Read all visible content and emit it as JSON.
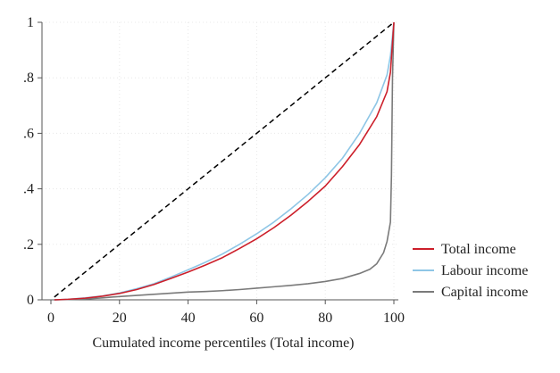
{
  "chart_data": {
    "type": "line",
    "title": "",
    "xlabel": "Cumulated income percentiles (Total income)",
    "ylabel": "",
    "xlim": [
      0,
      100
    ],
    "ylim": [
      0,
      1
    ],
    "xticks": [
      0,
      20,
      40,
      60,
      80,
      100
    ],
    "xtick_labels": [
      "0",
      "20",
      "40",
      "60",
      "80",
      "100"
    ],
    "yticks": [
      0,
      0.2,
      0.4,
      0.6,
      0.8,
      1
    ],
    "ytick_labels": [
      "0",
      ".2",
      ".4",
      ".6",
      ".8",
      "1"
    ],
    "grid": true,
    "legend_position": "bottom-right",
    "equality_line": {
      "x": [
        1,
        100
      ],
      "y": [
        0.01,
        1
      ],
      "color": "#000000",
      "style": "dashed"
    },
    "series": [
      {
        "name": "Total income",
        "color": "#cc1f2a",
        "x": [
          1,
          5,
          10,
          15,
          20,
          25,
          30,
          35,
          40,
          45,
          50,
          55,
          60,
          65,
          70,
          75,
          80,
          85,
          90,
          95,
          98,
          99,
          100
        ],
        "y": [
          0,
          0.002,
          0.006,
          0.013,
          0.023,
          0.037,
          0.055,
          0.077,
          0.1,
          0.125,
          0.152,
          0.185,
          0.22,
          0.26,
          0.305,
          0.355,
          0.41,
          0.48,
          0.56,
          0.66,
          0.75,
          0.82,
          1
        ]
      },
      {
        "name": "Labour income",
        "color": "#8ec6e6",
        "x": [
          1,
          5,
          10,
          15,
          20,
          25,
          30,
          35,
          40,
          45,
          50,
          55,
          60,
          65,
          70,
          75,
          80,
          85,
          90,
          95,
          98,
          99,
          100
        ],
        "y": [
          0,
          0.002,
          0.007,
          0.014,
          0.025,
          0.04,
          0.058,
          0.082,
          0.108,
          0.135,
          0.165,
          0.2,
          0.238,
          0.28,
          0.328,
          0.38,
          0.44,
          0.51,
          0.6,
          0.71,
          0.81,
          0.88,
          1
        ]
      },
      {
        "name": "Capital income",
        "color": "#7a7a7a",
        "x": [
          1,
          5,
          10,
          15,
          20,
          25,
          30,
          35,
          40,
          45,
          50,
          55,
          60,
          65,
          70,
          75,
          80,
          85,
          90,
          93,
          95,
          97,
          98,
          99,
          99.3,
          99.6,
          100
        ],
        "y": [
          0,
          0.001,
          0.003,
          0.007,
          0.012,
          0.016,
          0.02,
          0.024,
          0.028,
          0.03,
          0.033,
          0.037,
          0.042,
          0.047,
          0.052,
          0.058,
          0.066,
          0.077,
          0.095,
          0.11,
          0.13,
          0.17,
          0.21,
          0.28,
          0.45,
          0.8,
          1
        ]
      }
    ]
  }
}
